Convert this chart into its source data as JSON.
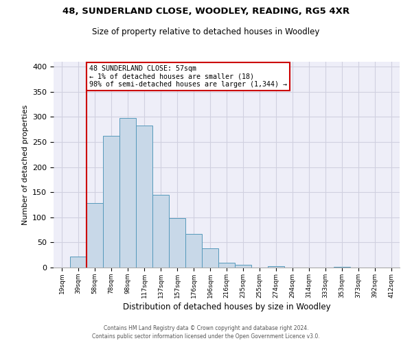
{
  "title": "48, SUNDERLAND CLOSE, WOODLEY, READING, RG5 4XR",
  "subtitle": "Size of property relative to detached houses in Woodley",
  "xlabel": "Distribution of detached houses by size in Woodley",
  "ylabel": "Number of detached properties",
  "bin_labels": [
    "19sqm",
    "39sqm",
    "58sqm",
    "78sqm",
    "98sqm",
    "117sqm",
    "137sqm",
    "157sqm",
    "176sqm",
    "196sqm",
    "216sqm",
    "235sqm",
    "255sqm",
    "274sqm",
    "294sqm",
    "314sqm",
    "333sqm",
    "353sqm",
    "373sqm",
    "392sqm",
    "412sqm"
  ],
  "bar_values": [
    0,
    22,
    128,
    263,
    298,
    283,
    145,
    98,
    67,
    38,
    9,
    5,
    0,
    3,
    0,
    0,
    0,
    2,
    0,
    0,
    0
  ],
  "bar_color": "#c8d8e8",
  "bar_edge_color": "#5599bb",
  "vline_color": "#cc0000",
  "annotation_text": "48 SUNDERLAND CLOSE: 57sqm\n← 1% of detached houses are smaller (18)\n98% of semi-detached houses are larger (1,344) →",
  "annotation_box_color": "#ffffff",
  "annotation_box_edge": "#cc0000",
  "ylim": [
    0,
    410
  ],
  "yticks": [
    0,
    50,
    100,
    150,
    200,
    250,
    300,
    350,
    400
  ],
  "grid_color": "#d0d0e0",
  "bg_color": "#eeeef8",
  "footer_line1": "Contains HM Land Registry data © Crown copyright and database right 2024.",
  "footer_line2": "Contains public sector information licensed under the Open Government Licence v3.0."
}
